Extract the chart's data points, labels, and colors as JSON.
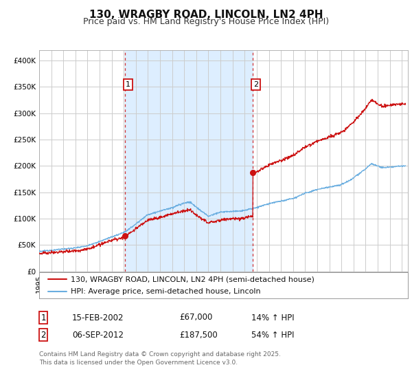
{
  "title": "130, WRAGBY ROAD, LINCOLN, LN2 4PH",
  "subtitle": "Price paid vs. HM Land Registry's House Price Index (HPI)",
  "ylim": [
    0,
    420000
  ],
  "yticks": [
    0,
    50000,
    100000,
    150000,
    200000,
    250000,
    300000,
    350000,
    400000
  ],
  "ytick_labels": [
    "£0",
    "£50K",
    "£100K",
    "£150K",
    "£200K",
    "£250K",
    "£300K",
    "£350K",
    "£400K"
  ],
  "xlim_start": 1995.0,
  "xlim_end": 2025.5,
  "shaded_region": [
    2002.12,
    2012.68
  ],
  "sale1_x": 2002.12,
  "sale1_y": 67000,
  "sale2_x": 2012.68,
  "sale2_y": 187500,
  "hpi_color": "#6aaee0",
  "price_color": "#cc1111",
  "grid_color": "#cccccc",
  "shaded_color": "#ddeeff",
  "plot_bg": "#ffffff",
  "legend_line1": "130, WRAGBY ROAD, LINCOLN, LN2 4PH (semi-detached house)",
  "legend_line2": "HPI: Average price, semi-detached house, Lincoln",
  "table_row1": [
    "1",
    "15-FEB-2002",
    "£67,000",
    "14% ↑ HPI"
  ],
  "table_row2": [
    "2",
    "06-SEP-2012",
    "£187,500",
    "54% ↑ HPI"
  ],
  "footnote1": "Contains HM Land Registry data © Crown copyright and database right 2025.",
  "footnote2": "This data is licensed under the Open Government Licence v3.0.",
  "title_fontsize": 11,
  "subtitle_fontsize": 9,
  "tick_fontsize": 7.5,
  "legend_fontsize": 8,
  "table_fontsize": 8.5,
  "footnote_fontsize": 6.5
}
